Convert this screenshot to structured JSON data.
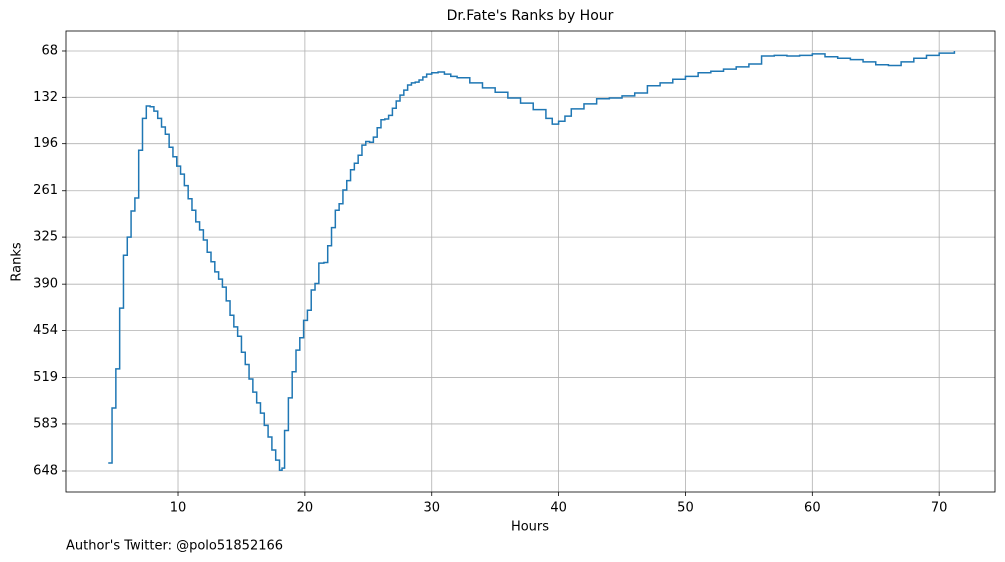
{
  "chart_data": {
    "type": "step",
    "title": "Dr.Fate's Ranks by Hour",
    "xlabel": "Hours",
    "ylabel": "Ranks",
    "annotation": "Author's Twitter: @polo51852166",
    "y_inverted": true,
    "grid": true,
    "drawstyle": "steps-post",
    "xlim": [
      1.17,
      74.4
    ],
    "ylim": [
      40.4,
      677
    ],
    "xticks": [
      10,
      20,
      30,
      40,
      50,
      60,
      70
    ],
    "yticks": [
      68,
      132,
      196,
      261,
      325,
      390,
      454,
      519,
      583,
      648
    ],
    "series": [
      {
        "name": "Ranks",
        "color": "#1f77b4",
        "x": [
          4.5,
          4.8,
          5.1,
          5.4,
          5.7,
          6.0,
          6.3,
          6.6,
          6.9,
          7.2,
          7.5,
          7.8,
          8.1,
          8.4,
          8.7,
          9.0,
          9.3,
          9.6,
          9.9,
          10.2,
          10.5,
          10.8,
          11.1,
          11.4,
          11.7,
          12.0,
          12.3,
          12.6,
          12.9,
          13.2,
          13.5,
          13.8,
          14.1,
          14.4,
          14.7,
          15.0,
          15.3,
          15.6,
          15.9,
          16.2,
          16.5,
          16.8,
          17.1,
          17.4,
          17.7,
          18.0,
          18.2,
          18.4,
          18.7,
          19.0,
          19.3,
          19.6,
          19.9,
          20.2,
          20.5,
          20.8,
          21.1,
          21.5,
          21.8,
          22.1,
          22.4,
          22.7,
          23.0,
          23.3,
          23.6,
          23.9,
          24.2,
          24.5,
          24.8,
          25.1,
          25.4,
          25.7,
          26.0,
          26.3,
          26.6,
          26.9,
          27.2,
          27.5,
          27.8,
          28.1,
          28.4,
          28.7,
          29.0,
          29.3,
          29.6,
          30.0,
          30.5,
          31.0,
          31.5,
          32.0,
          33.0,
          34.0,
          35.0,
          36.0,
          37.0,
          38.0,
          39.0,
          39.5,
          40.0,
          40.5,
          41.0,
          42.0,
          43.0,
          44.0,
          45.0,
          46.0,
          47.0,
          48.0,
          49.0,
          50.0,
          51.0,
          52.0,
          53.0,
          54.0,
          55.0,
          56.0,
          57.0,
          58.0,
          59.0,
          60.0,
          61.0,
          62.0,
          63.0,
          64.0,
          65.0,
          66.0,
          67.0,
          68.0,
          69.0,
          70.0,
          71.2
        ],
        "values": [
          637,
          561,
          507,
          423,
          350,
          325,
          289,
          271,
          205,
          161,
          144,
          145,
          151,
          161,
          173,
          183,
          201,
          214,
          227,
          238,
          254,
          272,
          288,
          304,
          315,
          329,
          346,
          359,
          373,
          383,
          394,
          413,
          433,
          449,
          462,
          484,
          501,
          521,
          539,
          554,
          568,
          585,
          601,
          619,
          633,
          647,
          644,
          592,
          547,
          511,
          481,
          464,
          440,
          426,
          398,
          389,
          361,
          360,
          337,
          312,
          288,
          279,
          260,
          247,
          232,
          223,
          212,
          198,
          193,
          194,
          187,
          174,
          163,
          162,
          157,
          147,
          137,
          129,
          122,
          115,
          112,
          111,
          108,
          104,
          100,
          98,
          97,
          100,
          103,
          105,
          112,
          119,
          125,
          133,
          140,
          149,
          161,
          169,
          165,
          158,
          148,
          141,
          134,
          133,
          130,
          126,
          116,
          112,
          107,
          103,
          98,
          96,
          93,
          90,
          86,
          75,
          74,
          75,
          74,
          72,
          76,
          78,
          80,
          83,
          87,
          88,
          83,
          78,
          74,
          71,
          68
        ]
      }
    ]
  }
}
